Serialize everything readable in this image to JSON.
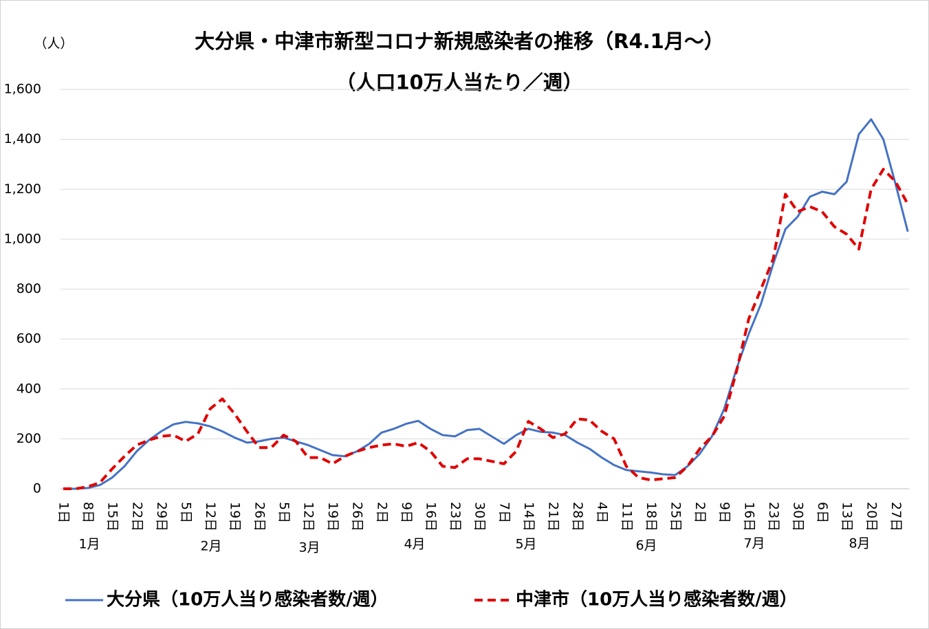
{
  "chart_data": {
    "type": "line",
    "title": "大分県・中津市新型コロナ新規感染者の推移（R4.1月～）",
    "subtitle": "（人口10万人当たり／週）",
    "y_unit": "（人）",
    "categories": [
      "1日",
      null,
      "8日",
      null,
      "15日",
      null,
      "22日",
      null,
      "29日",
      null,
      "5日",
      null,
      "12日",
      null,
      "19日",
      null,
      "26日",
      null,
      "5日",
      null,
      "12日",
      null,
      "19日",
      null,
      "26日",
      null,
      "2日",
      null,
      "9日",
      null,
      "16日",
      null,
      "23日",
      null,
      "30日",
      null,
      "7日",
      null,
      "14日",
      null,
      "21日",
      null,
      "28日",
      null,
      "4日",
      null,
      "11日",
      null,
      "18日",
      null,
      "25日",
      null,
      "2日",
      null,
      "9日",
      null,
      "16日",
      null,
      "23日",
      null,
      "30日",
      null,
      "6日",
      null,
      "13日",
      null,
      "20日",
      null,
      "27日",
      null
    ],
    "months": [
      "1月",
      "2月",
      "3月",
      "4月",
      "5月",
      "6月",
      "7月",
      "8月"
    ],
    "series": [
      {
        "name": "大分県（10万人当り感染者数/週）",
        "color": "#4472c4",
        "dash": false,
        "values": [
          0,
          0,
          3,
          15,
          45,
          90,
          150,
          195,
          230,
          258,
          268,
          262,
          250,
          230,
          205,
          185,
          190,
          200,
          205,
          190,
          175,
          155,
          135,
          130,
          150,
          180,
          225,
          240,
          260,
          272,
          240,
          215,
          210,
          235,
          240,
          210,
          180,
          215,
          240,
          228,
          225,
          215,
          185,
          160,
          125,
          95,
          75,
          70,
          65,
          58,
          55,
          90,
          140,
          210,
          320,
          480,
          620,
          740,
          900,
          1040,
          1090,
          1170,
          1190,
          1180,
          1230,
          1420,
          1480,
          1400,
          1220,
          1030
        ]
      },
      {
        "name": "中津市（10万人当り感染者数/週）",
        "color": "#e00000",
        "dash": true,
        "values": [
          0,
          0,
          8,
          25,
          80,
          130,
          175,
          195,
          210,
          215,
          190,
          220,
          320,
          360,
          300,
          230,
          165,
          165,
          215,
          190,
          125,
          125,
          100,
          130,
          150,
          165,
          175,
          180,
          170,
          185,
          150,
          90,
          85,
          120,
          120,
          110,
          100,
          150,
          270,
          240,
          205,
          220,
          280,
          275,
          230,
          200,
          90,
          45,
          35,
          40,
          45,
          90,
          160,
          210,
          290,
          470,
          680,
          800,
          920,
          1180,
          1110,
          1130,
          1110,
          1050,
          1020,
          960,
          1200,
          1280,
          1230,
          1140
        ]
      }
    ],
    "ylim": [
      0,
      1600
    ],
    "yticks": [
      0,
      200,
      400,
      600,
      800,
      {
        "value": 1000,
        "label": "1,000"
      },
      {
        "value": 1200,
        "label": "1,200"
      },
      {
        "value": 1400,
        "label": "1,400"
      },
      {
        "value": 1600,
        "label": "1,600"
      }
    ],
    "grid": true,
    "legend": "bottom"
  }
}
